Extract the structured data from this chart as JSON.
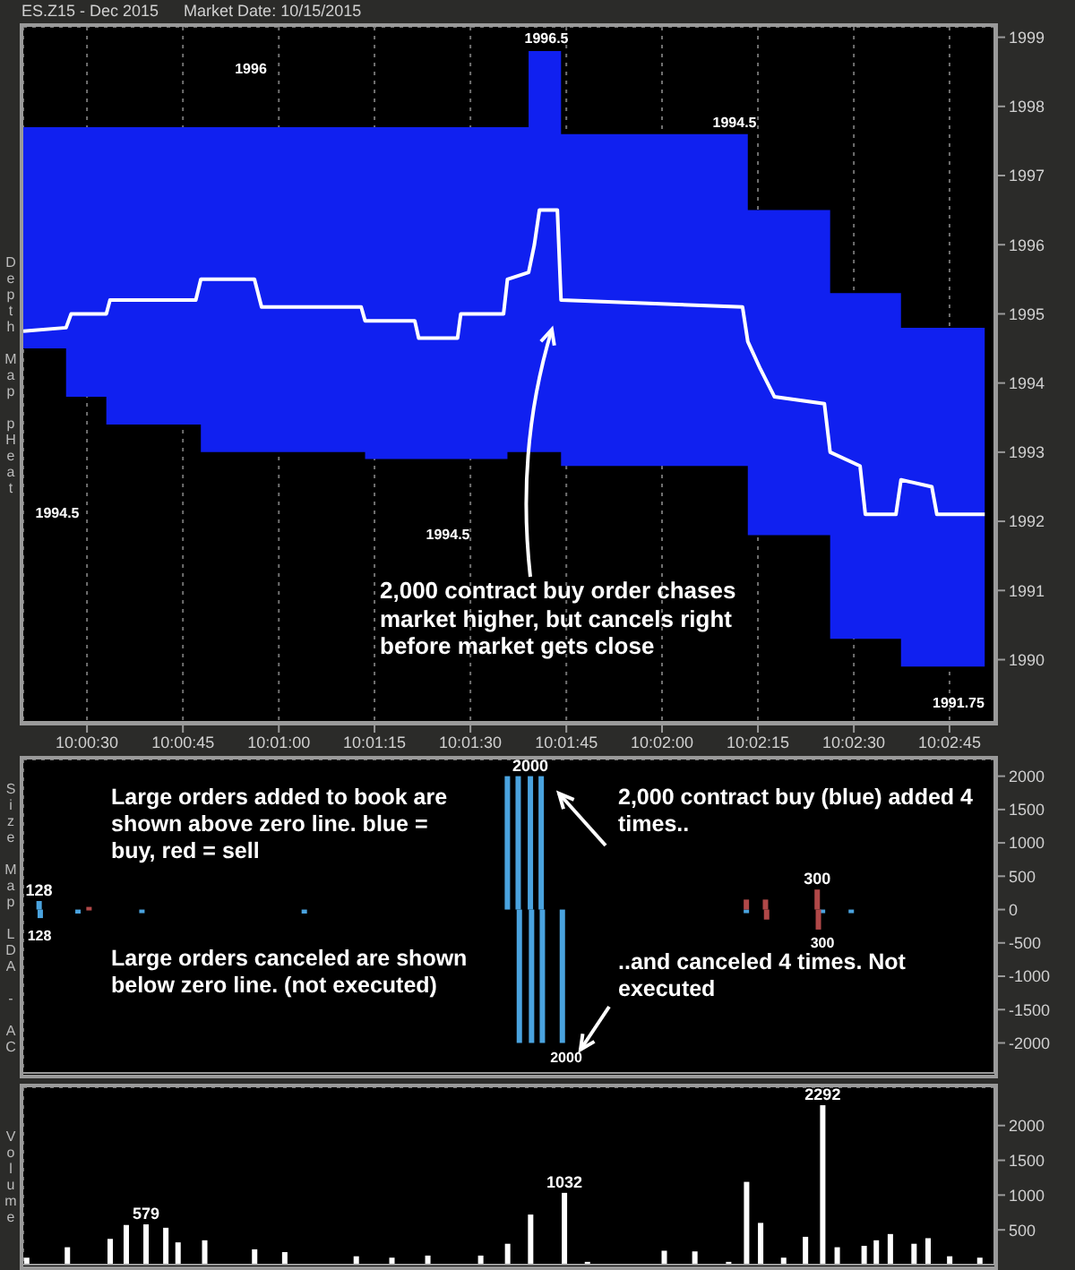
{
  "chart_data": [
    {
      "type": "line",
      "title": "ES.Z15 - Dec 2015",
      "subtitle": "Market Date: 10/15/2015",
      "ylabel": "Depth Map pHeat",
      "xlim": [
        10.00556,
        10.04778
      ],
      "xticks": [
        {
          "value": 10.00833,
          "label": "10:00:30"
        },
        {
          "value": 10.0125,
          "label": "10:00:45"
        },
        {
          "value": 10.01667,
          "label": "10:01:00"
        },
        {
          "value": 10.02083,
          "label": "10:01:15"
        },
        {
          "value": 10.025,
          "label": "10:01:30"
        },
        {
          "value": 10.02917,
          "label": "10:01:45"
        },
        {
          "value": 10.03333,
          "label": "10:02:00"
        },
        {
          "value": 10.0375,
          "label": "10:02:15"
        },
        {
          "value": 10.04167,
          "label": "10:02:30"
        },
        {
          "value": 10.04583,
          "label": "10:02:45"
        }
      ],
      "ylim": [
        1989.1,
        1999.15
      ],
      "yticks": [
        1990,
        1991,
        1992,
        1993,
        1994,
        1995,
        1996,
        1997,
        1998,
        1999
      ],
      "grid": true,
      "series": [
        {
          "color": "#ffffff",
          "x": [
            10.00556,
            10.00742,
            10.00764,
            10.00917,
            10.00933,
            10.01306,
            10.01328,
            10.01561,
            10.01592,
            10.02025,
            10.02042,
            10.02258,
            10.02275,
            10.02444,
            10.02458,
            10.02644,
            10.02661,
            10.02753,
            10.02778,
            10.028,
            10.02878,
            10.02894,
            10.03683,
            10.03706,
            10.03761,
            10.03822,
            10.04039,
            10.04064,
            10.04194,
            10.04217,
            10.0435,
            10.04372,
            10.04506,
            10.04528,
            10.04736
          ],
          "values": [
            1994.75,
            1994.8,
            1995.0,
            1995.0,
            1995.2,
            1995.2,
            1995.5,
            1995.5,
            1995.1,
            1995.1,
            1994.9,
            1994.9,
            1994.65,
            1994.65,
            1995.0,
            1995.0,
            1995.5,
            1995.6,
            1996.0,
            1996.5,
            1996.5,
            1995.2,
            1995.1,
            1994.6,
            1994.2,
            1993.8,
            1993.7,
            1993.0,
            1992.8,
            1992.1,
            1992.1,
            1992.6,
            1992.5,
            1992.1,
            1992.1
          ],
          "lower": [
            1994.5,
            1993.8,
            1993.8,
            1993.4,
            1993.4,
            1993.4,
            1993.0,
            1993.0,
            1993.0,
            1993.0,
            1992.9,
            1992.9,
            1992.9,
            1992.9,
            1992.9,
            1992.9,
            1993.0,
            1993.0,
            1993.0,
            1993.0,
            1993.0,
            1992.8,
            1992.8,
            1991.8,
            1991.8,
            1991.8,
            1991.8,
            1990.3,
            1990.3,
            1990.3,
            1990.3,
            1989.9,
            1989.9,
            1989.9,
            1989.9
          ],
          "upper": [
            1997.7,
            1997.7,
            1997.7,
            1997.7,
            1997.7,
            1997.7,
            1997.7,
            1997.7,
            1997.7,
            1997.7,
            1997.7,
            1997.7,
            1997.7,
            1997.7,
            1997.7,
            1997.7,
            1997.7,
            1998.8,
            1998.8,
            1998.8,
            1998.8,
            1997.6,
            1997.6,
            1996.5,
            1996.5,
            1996.5,
            1996.5,
            1995.3,
            1995.3,
            1995.3,
            1995.3,
            1994.8,
            1994.8,
            1994.8,
            1994.8
          ]
        }
      ],
      "annotations": [
        "2,000 contract buy order chases market higher, but cancels right before market gets close",
        "1996",
        "1996.5",
        "1994.5",
        "1994.5",
        "1994.5",
        "1991.75"
      ]
    },
    {
      "type": "bar",
      "ylabel": "Size Map LDA - AC",
      "tick_labels": "y",
      "xlim": [
        10.00556,
        10.04778
      ],
      "xticks": [
        {
          "value": 10.00833,
          "label": null
        },
        {
          "value": 10.0125,
          "label": null
        },
        {
          "value": 10.01667,
          "label": null
        },
        {
          "value": 10.02083,
          "label": null
        },
        {
          "value": 10.025,
          "label": null
        },
        {
          "value": 10.02917,
          "label": null
        },
        {
          "value": 10.03333,
          "label": null
        },
        {
          "value": 10.0375,
          "label": null
        },
        {
          "value": 10.04167,
          "label": null
        },
        {
          "value": 10.04583,
          "label": null
        }
      ],
      "ylim": [
        -2450,
        2250
      ],
      "yticks": [
        -2000,
        -1500,
        -1000,
        -500,
        0,
        500,
        1000,
        1500,
        2000
      ],
      "grid": true,
      "series": [
        {
          "color": "#4aa3df",
          "x": [
            10.00625,
            10.0063,
            10.00794,
            10.01072,
            10.01778,
            10.02661,
            10.02708,
            10.02713,
            10.02761,
            10.02766,
            10.02808,
            10.02813,
            10.029,
            10.037,
            10.04031,
            10.04156
          ],
          "values": [
            128,
            -128,
            -60,
            -30,
            -60,
            2000,
            2000,
            -2000,
            2000,
            -2000,
            2000,
            -2000,
            -2000,
            -30,
            -30,
            -40
          ],
          "value_labels": [
            "128",
            null,
            null,
            null,
            null,
            null,
            null,
            null,
            "2000",
            null,
            null,
            null,
            null,
            null,
            null,
            null
          ]
        },
        {
          "color": "#b04848",
          "x": [
            10.00842,
            10.037,
            10.03783,
            10.03788,
            10.04008,
            10.04013
          ],
          "values": [
            40,
            150,
            150,
            -150,
            300,
            -300
          ],
          "value_labels": [
            null,
            null,
            null,
            null,
            "300",
            null
          ]
        }
      ],
      "annotations": [
        "Large orders added to book are shown above zero line. blue = buy, red = sell",
        "Large orders canceled are shown below zero line. (not executed)",
        "2,000 contract buy (blue) added 4 times..",
        "..and canceled 4 times. Not executed",
        "128",
        "2000",
        "300"
      ]
    },
    {
      "type": "bar",
      "ylabel": "Volume",
      "tick_labels": "y",
      "xlim": [
        10.00556,
        10.04778
      ],
      "xticks": [
        {
          "value": 10.00833,
          "label": null
        },
        {
          "value": 10.0125,
          "label": null
        },
        {
          "value": 10.01667,
          "label": null
        },
        {
          "value": 10.02083,
          "label": null
        },
        {
          "value": 10.025,
          "label": null
        },
        {
          "value": 10.02917,
          "label": null
        },
        {
          "value": 10.03333,
          "label": null
        },
        {
          "value": 10.0375,
          "label": null
        },
        {
          "value": 10.04167,
          "label": null
        },
        {
          "value": 10.04583,
          "label": null
        }
      ],
      "ylim": [
        0,
        2550
      ],
      "yticks": [
        500,
        1000,
        1500,
        2000
      ],
      "grid": true,
      "series": [
        {
          "color": "#ffffff",
          "x": [
            10.0057,
            10.00747,
            10.00933,
            10.01003,
            10.01089,
            10.01175,
            10.01228,
            10.01344,
            10.01561,
            10.01692,
            10.02003,
            10.02158,
            10.02314,
            10.02544,
            10.02661,
            10.02761,
            10.02908,
            10.03008,
            10.03342,
            10.03475,
            10.03622,
            10.037,
            10.03761,
            10.03861,
            10.03956,
            10.04031,
            10.04094,
            10.04211,
            10.04264,
            10.04325,
            10.04428,
            10.04489,
            10.04583,
            10.04714
          ],
          "values": [
            100,
            250,
            370,
            570,
            579,
            530,
            320,
            350,
            220,
            180,
            120,
            100,
            130,
            130,
            300,
            720,
            1032,
            40,
            200,
            190,
            40,
            1190,
            600,
            100,
            400,
            2292,
            250,
            270,
            350,
            440,
            300,
            380,
            120,
            100
          ],
          "value_labels": [
            null,
            null,
            null,
            null,
            "579",
            null,
            null,
            null,
            null,
            null,
            null,
            null,
            null,
            null,
            null,
            null,
            "1032",
            null,
            null,
            null,
            null,
            null,
            null,
            null,
            null,
            "2292",
            null,
            null,
            null,
            null,
            null,
            null,
            null,
            null
          ]
        }
      ]
    }
  ]
}
